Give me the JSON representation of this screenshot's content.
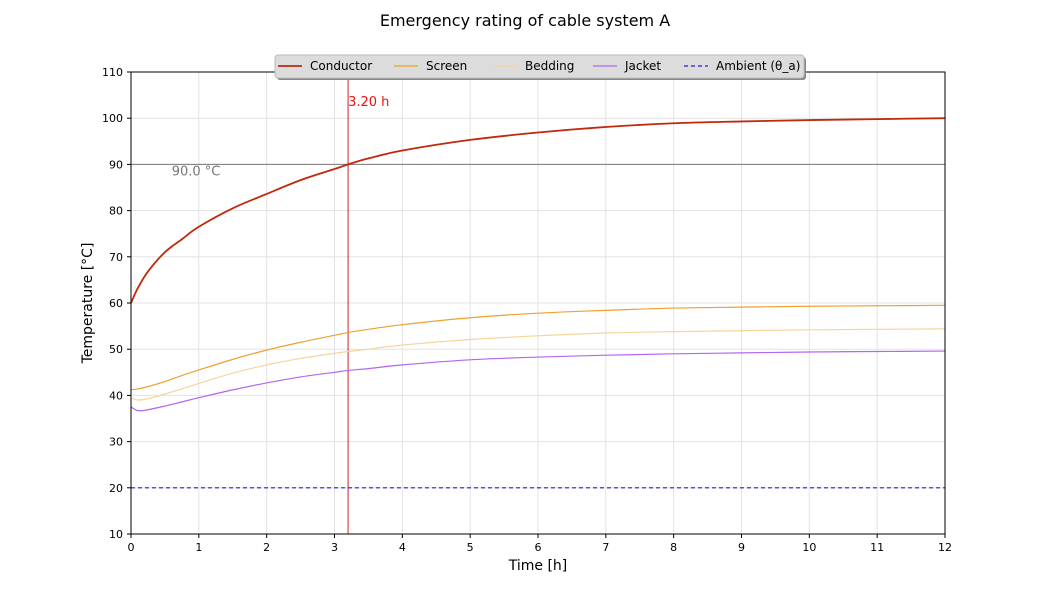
{
  "chart_data": {
    "type": "line",
    "title": "Emergency rating of cable system A",
    "xlabel": "Time [h]",
    "ylabel": "Temperature [°C]",
    "xlim": [
      0,
      12
    ],
    "ylim": [
      10,
      110
    ],
    "xticks": [
      0,
      1,
      2,
      3,
      4,
      5,
      6,
      7,
      8,
      9,
      10,
      11,
      12
    ],
    "yticks": [
      10,
      20,
      30,
      40,
      50,
      60,
      70,
      80,
      90,
      100,
      110
    ],
    "grid": true,
    "legend_position": "top-center",
    "x": [
      0,
      0.1,
      0.25,
      0.5,
      0.75,
      1,
      1.5,
      2,
      2.5,
      3,
      3.2,
      3.5,
      4,
      5,
      6,
      7,
      8,
      9,
      10,
      11,
      12
    ],
    "series": [
      {
        "name": "Conductor",
        "color": "#c1280e",
        "style": "solid",
        "values": [
          60,
          63.2,
          66.8,
          71.0,
          73.8,
          76.5,
          80.5,
          83.6,
          86.6,
          89.0,
          90.0,
          91.3,
          93.0,
          95.3,
          96.9,
          98.1,
          98.9,
          99.3,
          99.6,
          99.8,
          100.0
        ]
      },
      {
        "name": "Screen",
        "color": "#f0a030",
        "style": "solid",
        "values": [
          41.2,
          41.4,
          41.9,
          43.0,
          44.3,
          45.5,
          47.8,
          49.8,
          51.5,
          53.0,
          53.6,
          54.3,
          55.3,
          56.8,
          57.8,
          58.4,
          58.9,
          59.1,
          59.3,
          59.4,
          59.5
        ]
      },
      {
        "name": "Bedding",
        "color": "#f7d49a",
        "style": "solid",
        "values": [
          39.5,
          39.0,
          39.3,
          40.3,
          41.4,
          42.6,
          44.8,
          46.6,
          48.0,
          49.1,
          49.5,
          50.0,
          50.9,
          52.1,
          52.9,
          53.5,
          53.8,
          54.0,
          54.2,
          54.3,
          54.4
        ]
      },
      {
        "name": "Jacket",
        "color": "#b266f2",
        "style": "solid",
        "values": [
          37.5,
          36.7,
          36.9,
          37.7,
          38.6,
          39.5,
          41.2,
          42.7,
          44.0,
          45.0,
          45.4,
          45.8,
          46.6,
          47.7,
          48.3,
          48.7,
          49.0,
          49.2,
          49.4,
          49.5,
          49.6
        ]
      },
      {
        "name": "Ambient (θ_a)",
        "color": "#1f1fd6",
        "style": "dashed",
        "values": [
          20,
          20,
          20,
          20,
          20,
          20,
          20,
          20,
          20,
          20,
          20,
          20,
          20,
          20,
          20,
          20,
          20,
          20,
          20,
          20,
          20
        ]
      }
    ],
    "reference_lines": {
      "horizontal": {
        "y": 90.0,
        "label": "90.0 °C",
        "label_x": 0.6,
        "color": "#777777"
      },
      "vertical": {
        "x": 3.2,
        "label": "3.20 h",
        "color": "#cc2222",
        "label_color": "#ee1111"
      }
    }
  }
}
